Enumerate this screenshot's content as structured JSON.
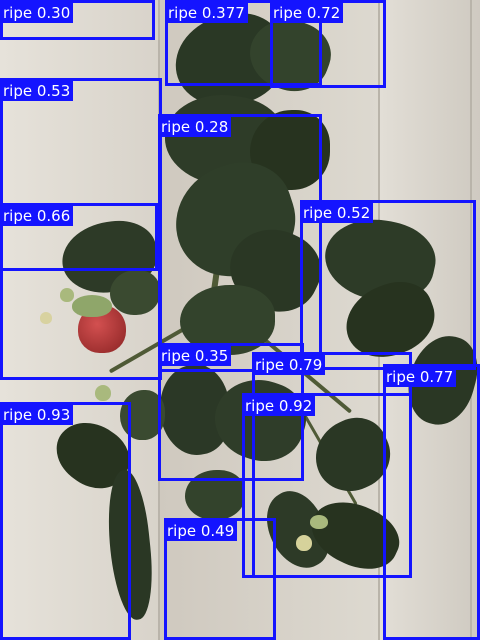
{
  "detections": [
    {
      "label": "ripe",
      "score": "0.30"
    },
    {
      "label": "ripe",
      "score": "0.377"
    },
    {
      "label": "ripe",
      "score": "0.72"
    },
    {
      "label": "ripe",
      "score": "0.53"
    },
    {
      "label": "ripe",
      "score": "0.28"
    },
    {
      "label": "ripe",
      "score": "0.66"
    },
    {
      "label": "ripe",
      "score": "0.52"
    },
    {
      "label": "ripe",
      "score": "0.35"
    },
    {
      "label": "ripe",
      "score": "0.79"
    },
    {
      "label": "ripe",
      "score": "0.77"
    },
    {
      "label": "ripe",
      "score": "0.93"
    },
    {
      "label": "ripe",
      "score": "0.92"
    },
    {
      "label": "ripe",
      "score": "0.49"
    }
  ],
  "colors": {
    "box": "#1414ff",
    "label_text": "#ffffff",
    "wall": "#dcd8cf",
    "leaf": "#2c3a26",
    "berry": "#b23a3a"
  }
}
